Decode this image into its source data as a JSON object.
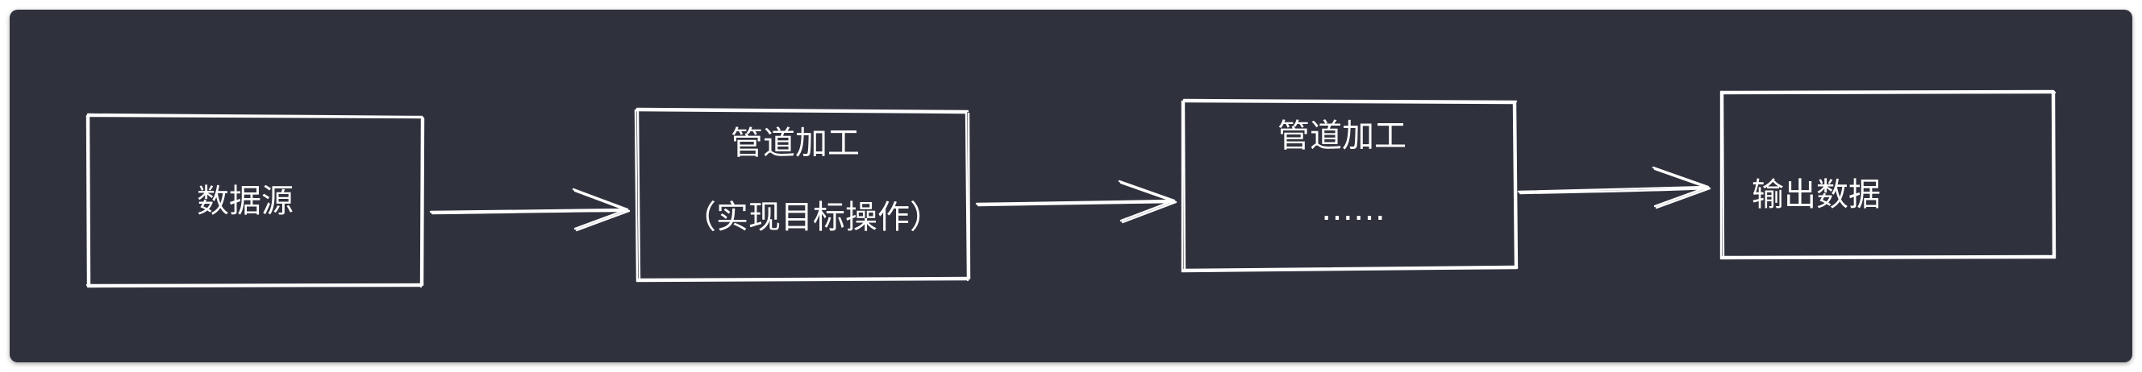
{
  "diagram": {
    "nodes": [
      {
        "id": "source",
        "lines": [
          "数据源"
        ]
      },
      {
        "id": "stage1",
        "lines": [
          "管道加工",
          "（实现目标操作）"
        ]
      },
      {
        "id": "stage2",
        "lines": [
          "管道加工",
          "……"
        ]
      },
      {
        "id": "output",
        "lines": [
          "输出数据"
        ]
      }
    ],
    "edges": [
      {
        "from": "source",
        "to": "stage1"
      },
      {
        "from": "stage1",
        "to": "stage2"
      },
      {
        "from": "stage2",
        "to": "output"
      }
    ],
    "colors": {
      "background": "#2f313d",
      "stroke": "#ffffff",
      "text": "#ffffff"
    }
  }
}
